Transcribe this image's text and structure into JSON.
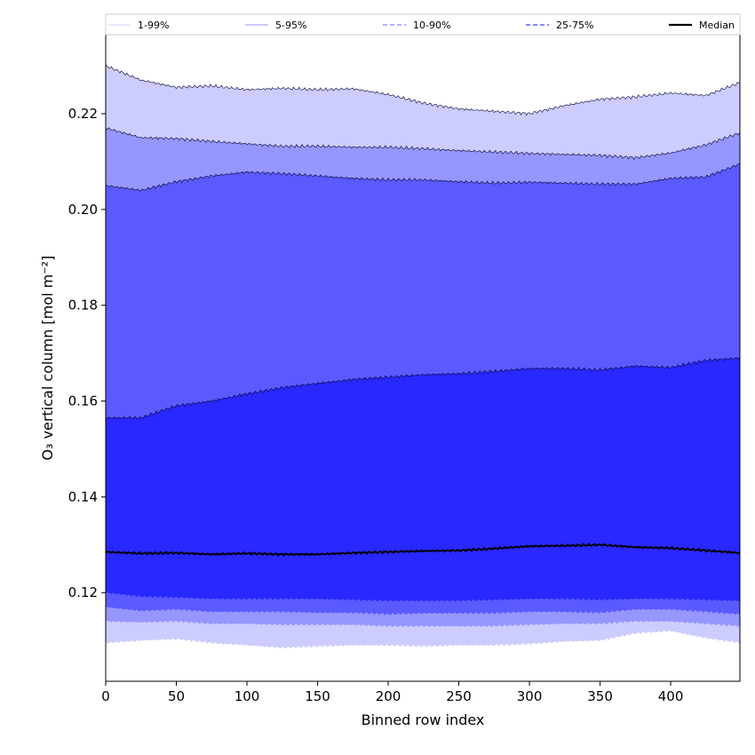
{
  "chart_data": {
    "type": "area",
    "title": "",
    "xlabel": "Binned row index",
    "ylabel": "O₃ vertical column [mol m⁻²]",
    "xlim": [
      0,
      449
    ],
    "ylim": [
      0.1015,
      0.2365
    ],
    "xticks": [
      0,
      50,
      100,
      150,
      200,
      250,
      300,
      350,
      400
    ],
    "yticks": [
      0.12,
      0.14,
      0.16,
      0.18,
      0.2,
      0.22
    ],
    "ytick_labels": [
      "0.12",
      "0.14",
      "0.16",
      "0.18",
      "0.20",
      "0.22"
    ],
    "grid": false,
    "legend_placement": "top (horizontal strip)",
    "x": [
      0,
      25,
      50,
      75,
      100,
      125,
      150,
      175,
      200,
      225,
      250,
      275,
      300,
      325,
      350,
      375,
      400,
      425,
      449
    ],
    "bands": [
      {
        "name": "1-99%",
        "color": "#ccccff",
        "lower": [
          0.1095,
          0.11,
          0.1103,
          0.1095,
          0.109,
          0.1085,
          0.1088,
          0.109,
          0.109,
          0.1088,
          0.109,
          0.109,
          0.1093,
          0.1098,
          0.11,
          0.1115,
          0.112,
          0.1105,
          0.1095
        ],
        "upper": [
          0.23,
          0.227,
          0.2255,
          0.2258,
          0.225,
          0.2253,
          0.225,
          0.2252,
          0.224,
          0.2222,
          0.221,
          0.2205,
          0.22,
          0.2217,
          0.223,
          0.2235,
          0.2243,
          0.2238,
          0.2265
        ]
      },
      {
        "name": "5-95%",
        "color": "#9696ff",
        "lower": [
          0.114,
          0.1138,
          0.114,
          0.1135,
          0.1135,
          0.1133,
          0.1133,
          0.1133,
          0.113,
          0.113,
          0.113,
          0.113,
          0.1133,
          0.1135,
          0.1135,
          0.114,
          0.114,
          0.1135,
          0.113
        ],
        "upper": [
          0.217,
          0.215,
          0.2148,
          0.2142,
          0.2137,
          0.2132,
          0.2132,
          0.213,
          0.213,
          0.2127,
          0.2123,
          0.212,
          0.2117,
          0.2115,
          0.2113,
          0.2108,
          0.2118,
          0.2135,
          0.216
        ]
      },
      {
        "name": "10-90%",
        "color": "#5a5aff",
        "lower": [
          0.117,
          0.1162,
          0.1165,
          0.116,
          0.116,
          0.116,
          0.1158,
          0.1158,
          0.1155,
          0.1157,
          0.1157,
          0.1157,
          0.116,
          0.116,
          0.1158,
          0.1165,
          0.1165,
          0.116,
          0.1155
        ],
        "upper": [
          0.205,
          0.204,
          0.2058,
          0.207,
          0.2078,
          0.2075,
          0.207,
          0.2065,
          0.2062,
          0.2062,
          0.2058,
          0.2055,
          0.2057,
          0.2055,
          0.2053,
          0.2053,
          0.2065,
          0.2068,
          0.2095
        ]
      },
      {
        "name": "25-75%",
        "color": "#2828ff",
        "lower": [
          0.12,
          0.1192,
          0.119,
          0.1187,
          0.1187,
          0.1187,
          0.1187,
          0.1185,
          0.1183,
          0.1183,
          0.1183,
          0.1185,
          0.1187,
          0.1187,
          0.1185,
          0.1187,
          0.1187,
          0.1185,
          0.1183
        ],
        "upper": [
          0.1565,
          0.1565,
          0.159,
          0.16,
          0.1615,
          0.1628,
          0.1637,
          0.1645,
          0.165,
          0.1655,
          0.1657,
          0.1662,
          0.1668,
          0.1668,
          0.1665,
          0.1673,
          0.167,
          0.1685,
          0.169
        ]
      }
    ],
    "median": {
      "name": "Median",
      "color": "#000000",
      "values": [
        0.1285,
        0.1282,
        0.1283,
        0.128,
        0.1282,
        0.128,
        0.128,
        0.1283,
        0.1285,
        0.1287,
        0.1288,
        0.1292,
        0.1297,
        0.1298,
        0.13,
        0.1295,
        0.1293,
        0.1288,
        0.1283
      ]
    },
    "legend": [
      {
        "label": "1-99%",
        "color": "#ccccff",
        "style": "solid"
      },
      {
        "label": "5-95%",
        "color": "#9696ff",
        "style": "solid"
      },
      {
        "label": "10-90%",
        "color": "#8080ff",
        "style": "dashed"
      },
      {
        "label": "25-75%",
        "color": "#4040ff",
        "style": "dashed"
      },
      {
        "label": "Median",
        "color": "#000000",
        "style": "solid-thick"
      }
    ]
  }
}
